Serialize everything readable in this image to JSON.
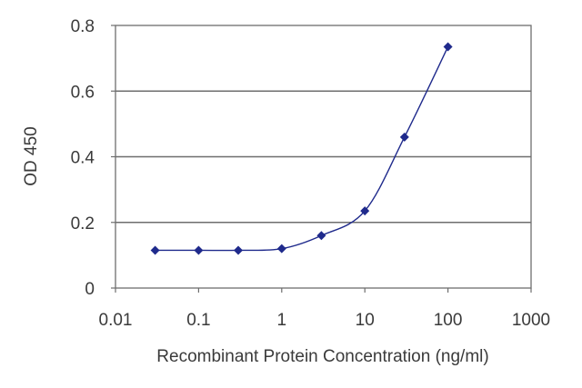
{
  "chart_data": {
    "type": "line",
    "title": "",
    "xlabel": "Recombinant Protein Concentration (ng/ml)",
    "ylabel": "OD 450",
    "xscale": "log",
    "xlim": [
      0.01,
      1000
    ],
    "ylim": [
      0,
      0.8
    ],
    "xticks": [
      0.01,
      0.1,
      1,
      10,
      100,
      1000
    ],
    "xtick_labels": [
      "0.01",
      "0.1",
      "1",
      "10",
      "100",
      "1000"
    ],
    "yticks": [
      0,
      0.2,
      0.4,
      0.6,
      0.8
    ],
    "ytick_labels": [
      "0",
      "0.2",
      "0.4",
      "0.6",
      "0.8"
    ],
    "grid": "horizontal",
    "legend": "none",
    "series": [
      {
        "color": "#1f2a8c",
        "marker": "diamond",
        "x": [
          0.03,
          0.1,
          0.3,
          1,
          3,
          10,
          30,
          100
        ],
        "y": [
          0.115,
          0.115,
          0.115,
          0.12,
          0.16,
          0.235,
          0.46,
          0.735
        ]
      }
    ]
  }
}
